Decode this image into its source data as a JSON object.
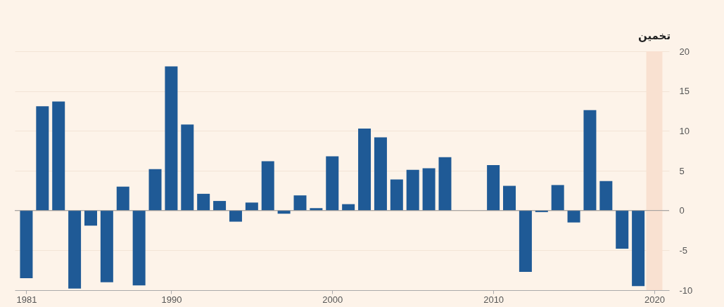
{
  "chart_data": {
    "type": "bar",
    "x": [
      1981,
      1982,
      1983,
      1984,
      1985,
      1986,
      1987,
      1988,
      1989,
      1990,
      1991,
      1992,
      1993,
      1994,
      1995,
      1996,
      1997,
      1998,
      1999,
      2000,
      2001,
      2002,
      2003,
      2004,
      2005,
      2006,
      2007,
      2008,
      2009,
      2010,
      2011,
      2012,
      2013,
      2014,
      2015,
      2016,
      2017,
      2018,
      2019,
      2020
    ],
    "values": [
      -8.5,
      13.1,
      13.7,
      -9.8,
      -1.9,
      -9.0,
      3.0,
      -9.4,
      5.2,
      18.1,
      10.8,
      2.1,
      1.2,
      -1.4,
      1.0,
      6.2,
      -0.4,
      1.9,
      0.3,
      6.8,
      0.8,
      10.3,
      9.2,
      3.9,
      5.1,
      5.3,
      6.7,
      0,
      0,
      5.7,
      3.1,
      -7.7,
      -0.2,
      3.2,
      -1.5,
      12.6,
      3.7,
      -4.8,
      -9.5,
      0
    ],
    "color": "#1f5a96",
    "xlim": [
      1980.5,
      2020.7
    ],
    "xticks": [
      1981,
      1990,
      2000,
      2010,
      2020
    ],
    "ylim": [
      -10,
      20
    ],
    "yticks": [
      -10,
      -5,
      0,
      5,
      10,
      15,
      20
    ],
    "grid": "y",
    "bands": [
      {
        "axis": "x",
        "from": 2019.5,
        "to": 2020.5,
        "label": "تخمین",
        "color": "#f9e1d1"
      }
    ]
  }
}
